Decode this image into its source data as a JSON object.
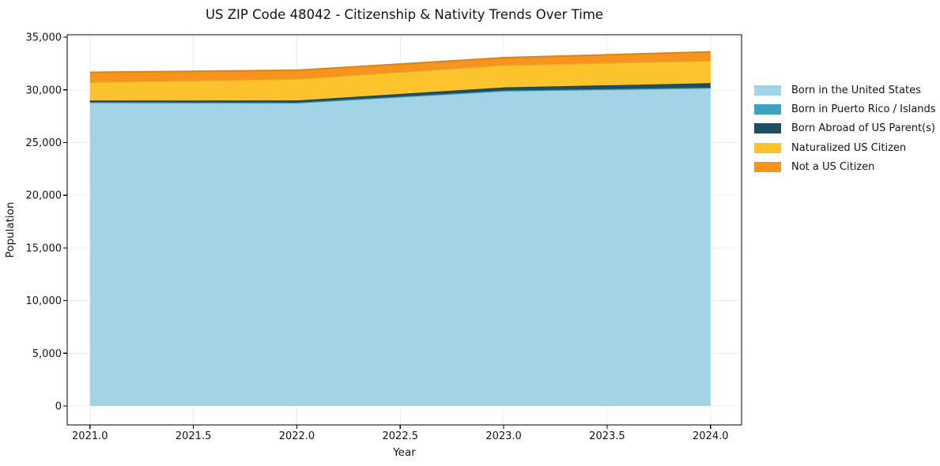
{
  "title": "US ZIP Code 48042 - Citizenship & Nativity Trends Over Time",
  "axes": {
    "x_label": "Year",
    "y_label": "Population",
    "x_tick_labels": [
      "2021.0",
      "2021.5",
      "2022.0",
      "2022.5",
      "2023.0",
      "2023.5",
      "2024.0"
    ],
    "y_tick_labels": [
      "0",
      "5,000",
      "10,000",
      "15,000",
      "20,000",
      "25,000",
      "30,000",
      "35,000"
    ]
  },
  "colors": {
    "spine": "#000000",
    "tick_text": "#141414",
    "grid": "#ececec",
    "background": "#ffffff"
  },
  "chart_data": {
    "type": "area",
    "stacked": true,
    "title": "US ZIP Code 48042 - Citizenship & Nativity Trends Over Time",
    "xlabel": "Year",
    "ylabel": "Population",
    "x": [
      2021,
      2022,
      2023,
      2024
    ],
    "series": [
      {
        "name": "Born in the United States",
        "color": "#a3d3e7",
        "values": [
          28800,
          28760,
          29890,
          30160
        ]
      },
      {
        "name": "Born in Puerto Rico / Islands",
        "color": "#3da2c2",
        "values": [
          40,
          40,
          50,
          60
        ]
      },
      {
        "name": "Born Abroad of US Parent(s)",
        "color": "#1f4e5c",
        "values": [
          150,
          200,
          300,
          420
        ]
      },
      {
        "name": "Naturalized US Citizen",
        "color": "#fcc32d",
        "values": [
          1750,
          2040,
          2110,
          2140
        ]
      },
      {
        "name": "Not a US Citizen",
        "color": "#f7941e",
        "values": [
          930,
          820,
          700,
          830
        ]
      }
    ],
    "stacked_totals": [
      31670,
      31860,
      33050,
      33610
    ],
    "x_ticks": [
      2021.0,
      2021.5,
      2022.0,
      2022.5,
      2023.0,
      2023.5,
      2024.0
    ],
    "y_ticks": [
      0,
      5000,
      10000,
      15000,
      20000,
      25000,
      30000,
      35000
    ],
    "xlim": [
      2020.89,
      2024.15
    ],
    "ylim": [
      -1800,
      35235
    ],
    "grid": true,
    "legend_position": "right-outside"
  }
}
